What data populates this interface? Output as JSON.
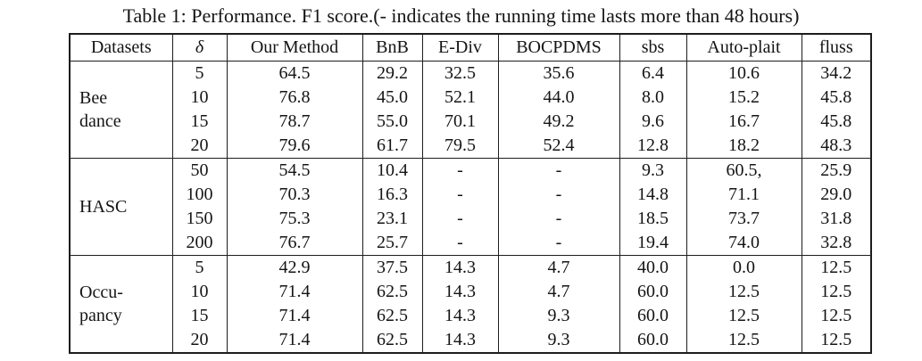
{
  "caption": "Table 1: Performance. F1 score.(- indicates the running time lasts more than 48 hours)",
  "colors": {
    "background": "#ffffff",
    "text": "#141414",
    "border": "#1d1d1d"
  },
  "chart_data": {
    "type": "table",
    "columns": [
      "Datasets",
      "δ",
      "Our Method",
      "BnB",
      "E-Div",
      "BOCPDMS",
      "sbs",
      "Auto-plait",
      "fluss"
    ],
    "groups": [
      {
        "dataset": "Bee dance",
        "dataset_lines": [
          "Bee",
          "dance"
        ],
        "rows": [
          {
            "delta": "5",
            "cells": [
              {
                "t": "64.5",
                "b": true
              },
              {
                "t": "29.2"
              },
              {
                "t": "32.5"
              },
              {
                "t": "35.6",
                "b": true
              },
              {
                "t": "6.4"
              },
              {
                "t": "10.6"
              },
              {
                "t": "34.2"
              }
            ]
          },
          {
            "delta": "10",
            "cells": [
              {
                "t": "76.8",
                "b": true
              },
              {
                "t": "45.0"
              },
              {
                "t": "52.1",
                "b": true
              },
              {
                "t": "44.0"
              },
              {
                "t": "8.0"
              },
              {
                "t": "15.2"
              },
              {
                "t": "45.8"
              }
            ]
          },
          {
            "delta": "15",
            "cells": [
              {
                "t": "78.7",
                "b": true
              },
              {
                "t": "55.0"
              },
              {
                "t": "70.1",
                "b": true
              },
              {
                "t": "49.2"
              },
              {
                "t": "9.6"
              },
              {
                "t": "16.7"
              },
              {
                "t": "45.8"
              }
            ]
          },
          {
            "delta": "20",
            "cells": [
              {
                "t": "79.6",
                "b": true
              },
              {
                "t": "61.7"
              },
              {
                "t": "79.5",
                "b": true
              },
              {
                "t": "52.4"
              },
              {
                "t": "12.8"
              },
              {
                "t": "18.2"
              },
              {
                "t": "48.3"
              }
            ]
          }
        ]
      },
      {
        "dataset": "HASC",
        "dataset_lines": [
          "HASC"
        ],
        "rows": [
          {
            "delta": "50",
            "cells": [
              {
                "t": "54.5",
                "b": true
              },
              {
                "t": "10.4"
              },
              {
                "t": "-"
              },
              {
                "t": "-"
              },
              {
                "t": "9.3"
              },
              {
                "t": "60.5,",
                "b": true
              },
              {
                "t": "25.9"
              }
            ]
          },
          {
            "delta": "100",
            "cells": [
              {
                "t": "70.3",
                "b": true
              },
              {
                "t": "16.3"
              },
              {
                "t": "-"
              },
              {
                "t": "-"
              },
              {
                "t": "14.8"
              },
              {
                "t": "71.1",
                "b": true
              },
              {
                "t": "29.0"
              }
            ]
          },
          {
            "delta": "150",
            "cells": [
              {
                "t": "75.3",
                "b": true
              },
              {
                "t": "23.1"
              },
              {
                "t": "-"
              },
              {
                "t": "-"
              },
              {
                "t": "18.5"
              },
              {
                "t": "73.7",
                "b": true
              },
              {
                "t": "31.8"
              }
            ]
          },
          {
            "delta": "200",
            "cells": [
              {
                "t": "76.7",
                "b": true
              },
              {
                "t": "25.7"
              },
              {
                "t": "-"
              },
              {
                "t": "-"
              },
              {
                "t": "19.4"
              },
              {
                "t": "74.0",
                "b": true
              },
              {
                "t": "32.8"
              }
            ]
          }
        ]
      },
      {
        "dataset": "Occupancy",
        "dataset_lines": [
          "Occu-",
          "pancy"
        ],
        "rows": [
          {
            "delta": "5",
            "cells": [
              {
                "t": "42.9",
                "b": true
              },
              {
                "t": "37.5"
              },
              {
                "t": "14.3"
              },
              {
                "t": "4.7"
              },
              {
                "t": "40.0",
                "b": true
              },
              {
                "t": "0.0"
              },
              {
                "t": "12.5"
              }
            ]
          },
          {
            "delta": "10",
            "cells": [
              {
                "t": "71.4",
                "b": true
              },
              {
                "t": "62.5",
                "b": true
              },
              {
                "t": "14.3"
              },
              {
                "t": "4.7"
              },
              {
                "t": "60.0"
              },
              {
                "t": "12.5"
              },
              {
                "t": "12.5"
              }
            ]
          },
          {
            "delta": "15",
            "cells": [
              {
                "t": "71.4",
                "b": true
              },
              {
                "t": "62.5",
                "b": true
              },
              {
                "t": "14.3"
              },
              {
                "t": "9.3"
              },
              {
                "t": "60.0"
              },
              {
                "t": "12.5"
              },
              {
                "t": "12.5"
              }
            ]
          },
          {
            "delta": "20",
            "cells": [
              {
                "t": "71.4",
                "b": true
              },
              {
                "t": "62.5",
                "b": true
              },
              {
                "t": "14.3"
              },
              {
                "t": "9.3"
              },
              {
                "t": "60.0"
              },
              {
                "t": "12.5"
              },
              {
                "t": "12.5"
              }
            ]
          }
        ]
      }
    ]
  }
}
